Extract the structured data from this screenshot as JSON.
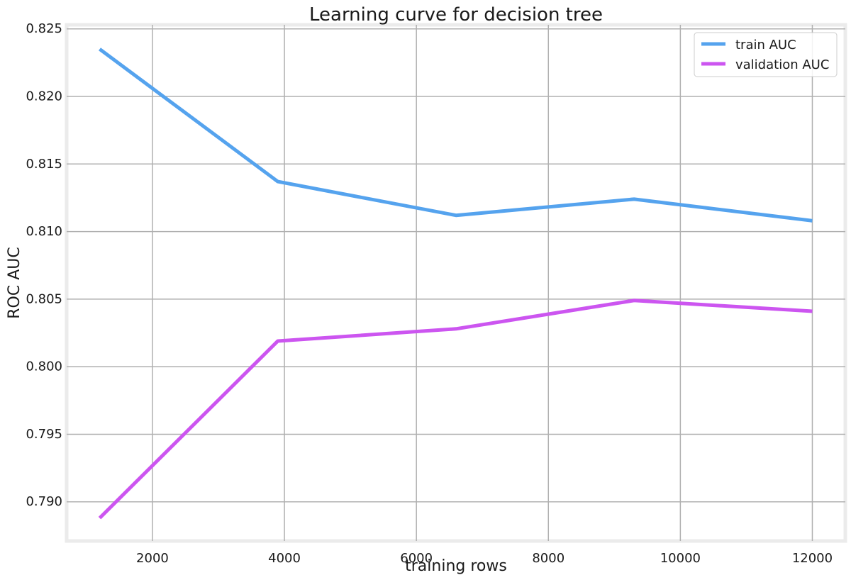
{
  "chart_data": {
    "type": "line",
    "title": "Learning curve for decision tree",
    "xlabel": "training rows",
    "ylabel": "ROC AUC",
    "x": [
      1200,
      3900,
      6600,
      9300,
      12000
    ],
    "xlim": [
      700,
      12500
    ],
    "ylim": [
      0.7871,
      0.8253
    ],
    "xticks": [
      2000,
      4000,
      6000,
      8000,
      10000,
      12000
    ],
    "yticks": [
      0.79,
      0.795,
      0.8,
      0.805,
      0.81,
      0.815,
      0.82,
      0.825
    ],
    "xtick_labels": [
      "2000",
      "4000",
      "6000",
      "8000",
      "10000",
      "12000"
    ],
    "ytick_labels": [
      "0.790",
      "0.795",
      "0.800",
      "0.805",
      "0.810",
      "0.815",
      "0.820",
      "0.825"
    ],
    "grid": true,
    "legend_position": "top-right",
    "series": [
      {
        "name": "train AUC",
        "color": "#55a3ee",
        "values": [
          0.8235,
          0.8137,
          0.8112,
          0.8124,
          0.8108
        ]
      },
      {
        "name": "validation AUC",
        "color": "#cc55f0",
        "values": [
          0.7888,
          0.8019,
          0.8028,
          0.8049,
          0.8041
        ]
      }
    ]
  }
}
